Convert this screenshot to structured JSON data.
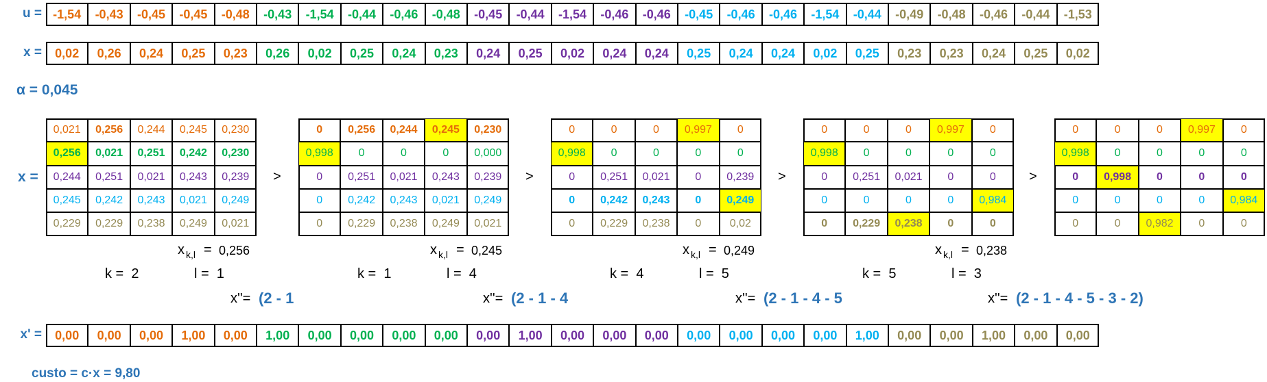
{
  "colors": [
    "#e46c0a",
    "#00b050",
    "#7030a0",
    "#00b0f0",
    "#948a54"
  ],
  "label_color": "#2e75b6",
  "highlight_color": "#ffff00",
  "u": {
    "label": "u =",
    "cells": [
      "-1,54",
      "-0,43",
      "-0,45",
      "-0,45",
      "-0,48",
      "-0,43",
      "-1,54",
      "-0,44",
      "-0,46",
      "-0,48",
      "-0,45",
      "-0,44",
      "-1,54",
      "-0,46",
      "-0,46",
      "-0,45",
      "-0,46",
      "-0,46",
      "-1,54",
      "-0,44",
      "-0,49",
      "-0,48",
      "-0,46",
      "-0,44",
      "-1,53"
    ]
  },
  "x": {
    "label": "x =",
    "cells": [
      "0,02",
      "0,26",
      "0,24",
      "0,25",
      "0,23",
      "0,26",
      "0,02",
      "0,25",
      "0,24",
      "0,23",
      "0,24",
      "0,25",
      "0,02",
      "0,24",
      "0,24",
      "0,25",
      "0,24",
      "0,24",
      "0,02",
      "0,25",
      "0,23",
      "0,23",
      "0,24",
      "0,25",
      "0,02"
    ]
  },
  "alpha": "α = 0,045",
  "matrix_label": "x =",
  "separator": ">",
  "matrices": [
    {
      "rows": [
        [
          "0,021",
          "0,256",
          "0,244",
          "0,245",
          "0,230"
        ],
        [
          "0,256",
          "0,021",
          "0,251",
          "0,242",
          "0,230"
        ],
        [
          "0,244",
          "0,251",
          "0,021",
          "0,243",
          "0,239"
        ],
        [
          "0,245",
          "0,242",
          "0,243",
          "0,021",
          "0,249"
        ],
        [
          "0,229",
          "0,229",
          "0,238",
          "0,249",
          "0,021"
        ]
      ],
      "bold_row": 1,
      "bold_cells": [
        [
          0,
          1
        ]
      ],
      "highlight": [
        [
          1,
          0
        ]
      ],
      "xkl": {
        "var": "x",
        "sub": "k,l",
        "eq": "=",
        "value": "0,256"
      },
      "k": "k =  2",
      "l": "l =  1",
      "path_label": "x''=",
      "path": "(2 - 1"
    },
    {
      "rows": [
        [
          "0",
          "0,256",
          "0,244",
          "0,245",
          "0,230"
        ],
        [
          "0,998",
          "0",
          "0",
          "0",
          "0,000"
        ],
        [
          "0",
          "0,251",
          "0,021",
          "0,243",
          "0,239"
        ],
        [
          "0",
          "0,242",
          "0,243",
          "0,021",
          "0,249"
        ],
        [
          "0",
          "0,229",
          "0,238",
          "0,249",
          "0,021"
        ]
      ],
      "bold_row": 0,
      "bold_cells": [],
      "highlight": [
        [
          0,
          3
        ],
        [
          1,
          0
        ]
      ],
      "xkl": {
        "var": "x",
        "sub": "k,l",
        "eq": "=",
        "value": "0,245"
      },
      "k": "k =  1",
      "l": "l =  4",
      "path_label": "x''=",
      "path": "(2 - 1 - 4"
    },
    {
      "rows": [
        [
          "0",
          "0",
          "0",
          "0,997",
          "0"
        ],
        [
          "0,998",
          "0",
          "0",
          "0",
          "0"
        ],
        [
          "0",
          "0,251",
          "0,021",
          "0",
          "0,239"
        ],
        [
          "0",
          "0,242",
          "0,243",
          "0",
          "0,249"
        ],
        [
          "0",
          "0,229",
          "0,238",
          "0",
          "0,02"
        ]
      ],
      "bold_row": 3,
      "bold_cells": [],
      "highlight": [
        [
          0,
          3
        ],
        [
          1,
          0
        ],
        [
          3,
          4
        ]
      ],
      "xkl": {
        "var": "x",
        "sub": "k,l",
        "eq": "=",
        "value": "0,249"
      },
      "k": "k =  4",
      "l": "l =  5",
      "path_label": "x''=",
      "path": "(2 - 1 - 4 - 5"
    },
    {
      "rows": [
        [
          "0",
          "0",
          "0",
          "0,997",
          "0"
        ],
        [
          "0,998",
          "0",
          "0",
          "0",
          "0"
        ],
        [
          "0",
          "0,251",
          "0,021",
          "0",
          "0"
        ],
        [
          "0",
          "0",
          "0",
          "0",
          "0,984"
        ],
        [
          "0",
          "0,229",
          "0,238",
          "0",
          "0"
        ]
      ],
      "bold_row": 4,
      "bold_cells": [],
      "highlight": [
        [
          0,
          3
        ],
        [
          1,
          0
        ],
        [
          3,
          4
        ],
        [
          4,
          2
        ]
      ],
      "xkl": {
        "var": "x",
        "sub": "k,l",
        "eq": "=",
        "value": "0,238"
      },
      "k": "k =  5",
      "l": "l =  3",
      "path_label": "x''=",
      "path": "(2 - 1 - 4 - 5 - 3 - 2)"
    },
    {
      "rows": [
        [
          "0",
          "0",
          "0",
          "0,997",
          "0"
        ],
        [
          "0,998",
          "0",
          "0",
          "0",
          "0"
        ],
        [
          "0",
          "0,998",
          "0",
          "0",
          "0"
        ],
        [
          "0",
          "0",
          "0",
          "0",
          "0,984"
        ],
        [
          "0",
          "0",
          "0,982",
          "0",
          "0"
        ]
      ],
      "bold_row": 2,
      "bold_cells": [],
      "highlight": [
        [
          0,
          3
        ],
        [
          1,
          0
        ],
        [
          2,
          1
        ],
        [
          3,
          4
        ],
        [
          4,
          2
        ]
      ]
    }
  ],
  "x_prime": {
    "label": "x' =",
    "cells": [
      "0,00",
      "0,00",
      "0,00",
      "1,00",
      "0,00",
      "1,00",
      "0,00",
      "0,00",
      "0,00",
      "0,00",
      "0,00",
      "1,00",
      "0,00",
      "0,00",
      "0,00",
      "0,00",
      "0,00",
      "0,00",
      "0,00",
      "1,00",
      "0,00",
      "0,00",
      "1,00",
      "0,00",
      "0,00"
    ]
  },
  "custo": "custo = c·x = 9,80"
}
